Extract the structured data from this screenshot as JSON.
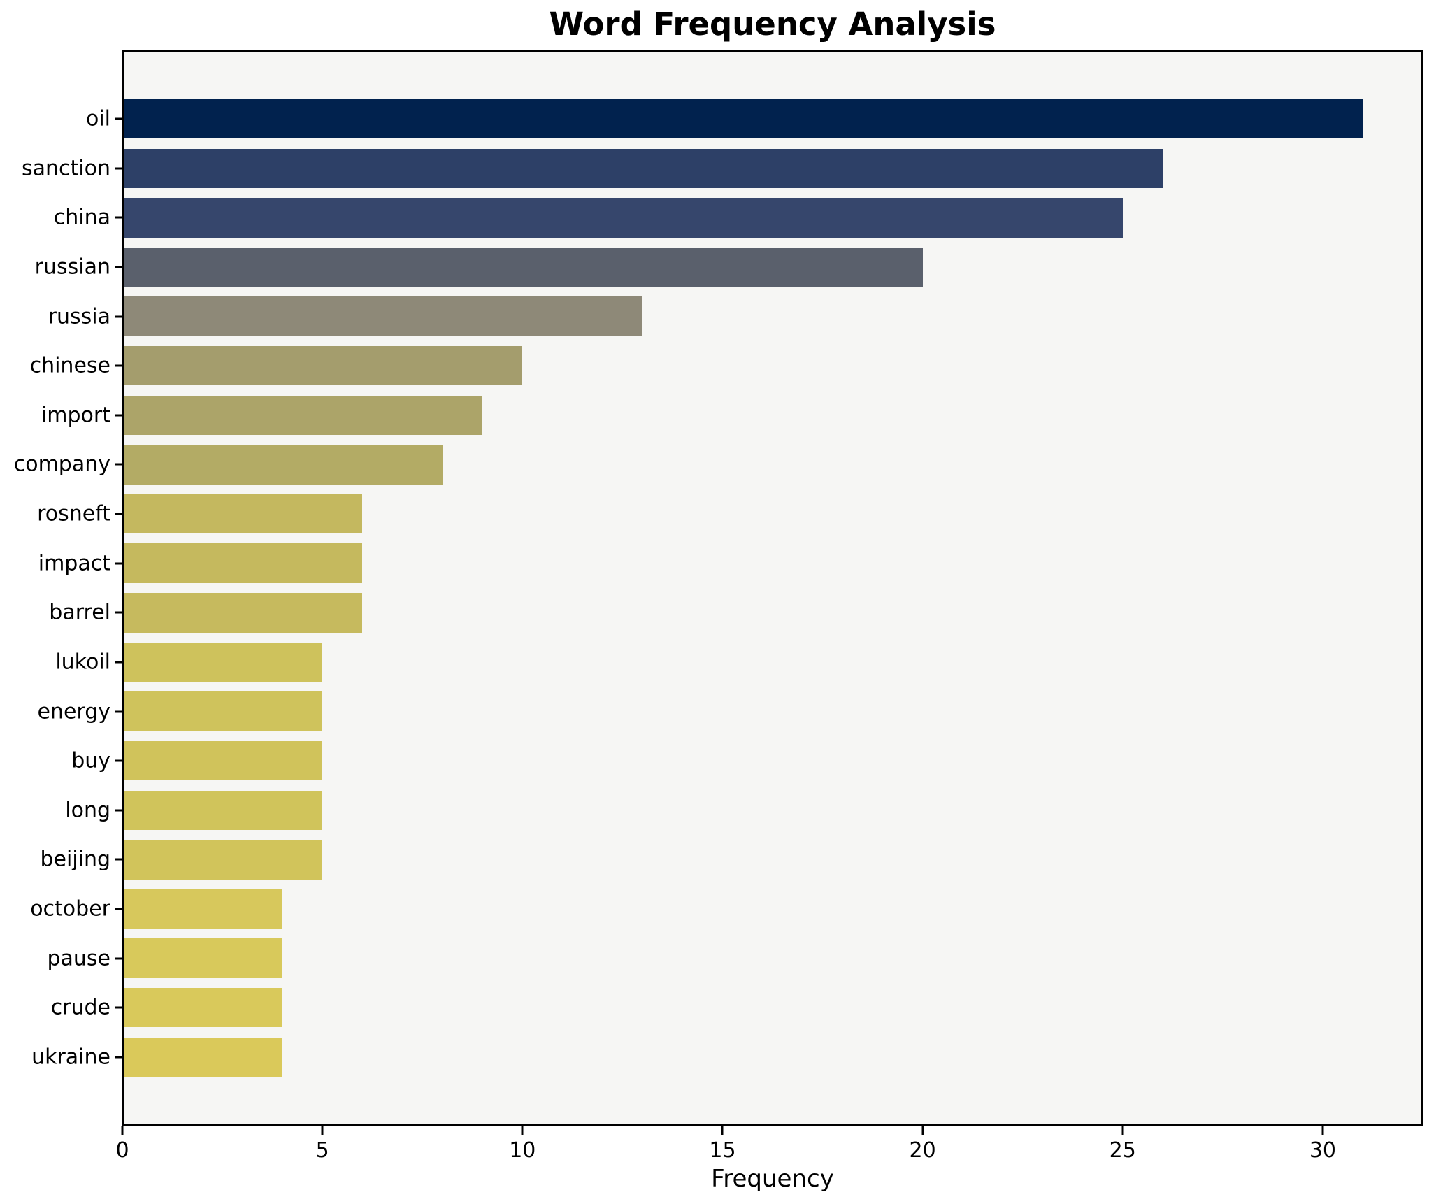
{
  "chart_data": {
    "type": "bar",
    "orientation": "horizontal",
    "title": "Word Frequency Analysis",
    "xlabel": "Frequency",
    "ylabel": "",
    "categories": [
      "oil",
      "sanction",
      "china",
      "russian",
      "russia",
      "chinese",
      "import",
      "company",
      "rosneft",
      "impact",
      "barrel",
      "lukoil",
      "energy",
      "buy",
      "long",
      "beijing",
      "october",
      "pause",
      "crude",
      "ukraine"
    ],
    "values": [
      31,
      26,
      25,
      20,
      13,
      10,
      9,
      8,
      6,
      6,
      6,
      5,
      5,
      5,
      5,
      5,
      4,
      4,
      4,
      4
    ],
    "bar_colors": [
      "#01224e",
      "#2d4067",
      "#36466c",
      "#5a606c",
      "#8e8978",
      "#a49d6d",
      "#aca469",
      "#b3ab65",
      "#c4b85f",
      "#c5b95e",
      "#c6ba5e",
      "#cec25c",
      "#cfc35c",
      "#d0c35b",
      "#d0c45b",
      "#d1c45b",
      "#d7c85c",
      "#d8c95b",
      "#d9c95b",
      "#dac95a"
    ],
    "xticks": [
      0,
      5,
      10,
      15,
      20,
      25,
      30
    ],
    "xlim": [
      0,
      32.5
    ],
    "grid": false,
    "legend": "none",
    "plot_background": "#f6f6f4",
    "figure_background": "#ffffff",
    "spine_color": "#000000",
    "text_color": "#000000"
  }
}
